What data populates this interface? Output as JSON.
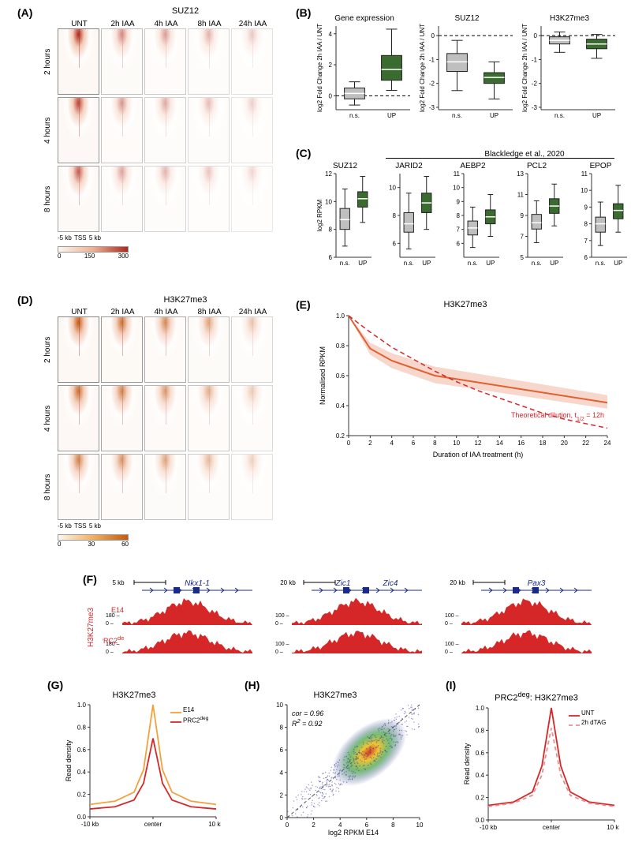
{
  "colors": {
    "green": "#3a6b2f",
    "gray": "#bfbfbf",
    "red": "#d62728",
    "orange": "#f2a13b",
    "darkred": "#b1261b",
    "blue": "#2a3a9a",
    "text": "#000000",
    "bg": "#ffffff"
  },
  "panelA": {
    "label": "(A)",
    "title": "SUZ12",
    "columns": [
      "UNT",
      "2h IAA",
      "4h IAA",
      "8h IAA",
      "24h IAA"
    ],
    "rows": [
      "2 hours",
      "4 hours",
      "8 hours"
    ],
    "xaxis": {
      "left": "-5 kb",
      "center": "TSS",
      "right": "5 kb"
    },
    "colorbar": {
      "min": 0,
      "mid": 150,
      "max": 300,
      "gradient": [
        "#fdf6ef",
        "#f0b090",
        "#b1261b"
      ]
    },
    "intensity_by_col": [
      1.0,
      0.55,
      0.45,
      0.35,
      0.25
    ]
  },
  "panelB": {
    "label": "(B)",
    "plots": [
      {
        "title": "Gene expression",
        "ylabel": "log2 Fold Change 2h IAA / UNT",
        "ylim": [
          -0.9,
          4.5
        ],
        "zero": 0,
        "categories": [
          "n.s.",
          "UP"
        ],
        "boxes": [
          {
            "color": "#bfbfbf",
            "q1": -0.2,
            "median": 0.15,
            "q3": 0.5,
            "lw": -0.6,
            "uw": 0.9
          },
          {
            "color": "#3a6b2f",
            "q1": 1.0,
            "median": 1.7,
            "q3": 2.6,
            "lw": 0.35,
            "uw": 4.3
          }
        ]
      },
      {
        "title": "SUZ12",
        "ylabel": "log2 Fold Change 2h IAA / UNT",
        "ylim": [
          -3.1,
          0.4
        ],
        "zero": 0,
        "categories": [
          "n.s.",
          "UP"
        ],
        "boxes": [
          {
            "color": "#bfbfbf",
            "q1": -1.5,
            "median": -1.1,
            "q3": -0.75,
            "lw": -2.3,
            "uw": -0.2
          },
          {
            "color": "#3a6b2f",
            "q1": -2.0,
            "median": -1.75,
            "q3": -1.55,
            "lw": -2.65,
            "uw": -1.1
          }
        ]
      },
      {
        "title": "H3K27me3",
        "ylabel": "log2 Fold Change 2h IAA / UNT",
        "ylim": [
          -3.1,
          0.4
        ],
        "zero": 0,
        "categories": [
          "n.s.",
          "UP"
        ],
        "boxes": [
          {
            "color": "#bfbfbf",
            "q1": -0.35,
            "median": -0.2,
            "q3": -0.05,
            "lw": -0.7,
            "uw": 0.15
          },
          {
            "color": "#3a6b2f",
            "q1": -0.55,
            "median": -0.35,
            "q3": -0.15,
            "lw": -0.95,
            "uw": 0.05
          }
        ]
      }
    ]
  },
  "panelC": {
    "label": "(C)",
    "ref": "Blackledge et al., 2020",
    "ylabel": "log2 RPKM",
    "plots": [
      {
        "title": "SUZ12",
        "ylim": [
          6,
          12
        ],
        "ticks": [
          6,
          8,
          10,
          12
        ],
        "categories": [
          "n.s.",
          "UP"
        ],
        "boxes": [
          {
            "color": "#bfbfbf",
            "q1": 8.0,
            "median": 8.7,
            "q3": 9.5,
            "lw": 6.8,
            "uw": 10.9
          },
          {
            "color": "#3a6b2f",
            "q1": 9.6,
            "median": 10.2,
            "q3": 10.7,
            "lw": 8.5,
            "uw": 11.8
          }
        ]
      },
      {
        "title": "JARID2",
        "ylim": [
          5,
          11
        ],
        "ticks": [
          6,
          8,
          10
        ],
        "categories": [
          "n.s.",
          "UP"
        ],
        "boxes": [
          {
            "color": "#bfbfbf",
            "q1": 6.8,
            "median": 7.4,
            "q3": 8.2,
            "lw": 5.6,
            "uw": 9.6
          },
          {
            "color": "#3a6b2f",
            "q1": 8.2,
            "median": 8.9,
            "q3": 9.6,
            "lw": 7.0,
            "uw": 10.8
          }
        ]
      },
      {
        "title": "AEBP2",
        "ylim": [
          5,
          11
        ],
        "ticks": [
          6,
          7,
          8,
          9,
          10,
          11
        ],
        "categories": [
          "n.s.",
          "UP"
        ],
        "boxes": [
          {
            "color": "#bfbfbf",
            "q1": 6.6,
            "median": 7.1,
            "q3": 7.6,
            "lw": 5.7,
            "uw": 8.6
          },
          {
            "color": "#3a6b2f",
            "q1": 7.4,
            "median": 7.9,
            "q3": 8.4,
            "lw": 6.5,
            "uw": 9.5
          }
        ]
      },
      {
        "title": "PCL2",
        "ylim": [
          5,
          13
        ],
        "ticks": [
          5,
          7,
          9,
          11,
          13
        ],
        "categories": [
          "n.s.",
          "UP"
        ],
        "boxes": [
          {
            "color": "#bfbfbf",
            "q1": 7.7,
            "median": 8.3,
            "q3": 9.1,
            "lw": 6.4,
            "uw": 10.4
          },
          {
            "color": "#3a6b2f",
            "q1": 9.2,
            "median": 9.9,
            "q3": 10.6,
            "lw": 8.0,
            "uw": 12.0
          }
        ]
      },
      {
        "title": "EPOP",
        "ylim": [
          6,
          11
        ],
        "ticks": [
          6,
          7,
          8,
          9,
          10,
          11
        ],
        "categories": [
          "n.s.",
          "UP"
        ],
        "boxes": [
          {
            "color": "#bfbfbf",
            "q1": 7.5,
            "median": 8.0,
            "q3": 8.4,
            "lw": 6.7,
            "uw": 9.3
          },
          {
            "color": "#3a6b2f",
            "q1": 8.3,
            "median": 8.8,
            "q3": 9.2,
            "lw": 7.5,
            "uw": 10.3
          }
        ]
      }
    ]
  },
  "panelD": {
    "label": "(D)",
    "title": "H3K27me3",
    "columns": [
      "UNT",
      "2h IAA",
      "4h IAA",
      "8h IAA",
      "24h IAA"
    ],
    "rows": [
      "2 hours",
      "4 hours",
      "8 hours"
    ],
    "xaxis": {
      "left": "-5 kb",
      "center": "TSS",
      "right": "5 kb"
    },
    "colorbar": {
      "min": 0,
      "mid": 30,
      "max": 60,
      "gradient": [
        "#fdf6ef",
        "#f0b060",
        "#c45a10"
      ]
    },
    "intensity_by_col": [
      1.0,
      0.85,
      0.7,
      0.55,
      0.35
    ]
  },
  "panelE": {
    "label": "(E)",
    "title": "H3K27me3",
    "ylabel": "Normalised RPKM",
    "xlabel": "Duration of IAA treatment (h)",
    "xlim": [
      0,
      24
    ],
    "ylim": [
      0.2,
      1.0
    ],
    "xticks": [
      0,
      2,
      4,
      6,
      8,
      10,
      12,
      14,
      16,
      18,
      20,
      22,
      24
    ],
    "yticks": [
      0.2,
      0.4,
      0.6,
      0.8,
      1.0
    ],
    "annotation": "Theoretical dilution, t₁₂ = 12h",
    "annotation_html": "Theoretical dilution, t<sub>1/2</sub> = 12h",
    "series_measured": {
      "color": "#e06030",
      "points": [
        [
          0,
          1.0
        ],
        [
          2,
          0.78
        ],
        [
          4,
          0.7
        ],
        [
          8,
          0.6
        ],
        [
          24,
          0.42
        ]
      ],
      "ribbon_lo": [
        [
          0,
          1.0
        ],
        [
          2,
          0.74
        ],
        [
          4,
          0.65
        ],
        [
          8,
          0.55
        ],
        [
          24,
          0.38
        ]
      ],
      "ribbon_hi": [
        [
          0,
          1.0
        ],
        [
          2,
          0.82
        ],
        [
          4,
          0.75
        ],
        [
          8,
          0.66
        ],
        [
          24,
          0.47
        ]
      ]
    },
    "series_theoretical": {
      "color": "#d62728",
      "dash": "6,4",
      "points": [
        [
          0,
          1.0
        ],
        [
          2,
          0.89
        ],
        [
          4,
          0.79
        ],
        [
          6,
          0.71
        ],
        [
          8,
          0.63
        ],
        [
          10,
          0.56
        ],
        [
          12,
          0.5
        ],
        [
          14,
          0.45
        ],
        [
          16,
          0.4
        ],
        [
          18,
          0.35
        ],
        [
          20,
          0.31
        ],
        [
          22,
          0.28
        ],
        [
          24,
          0.25
        ]
      ]
    }
  },
  "panelF": {
    "label": "(F)",
    "row_group": "H3K27me3",
    "rows": [
      "E14",
      "PRC2ᵈᵉᵍ"
    ],
    "rows_html": [
      "E14",
      "PRC2<sup>deg</sup>"
    ],
    "tracks": [
      {
        "gene": "Nkx1-1",
        "scale": "5 kb",
        "ymax": 180
      },
      {
        "gene_pair": [
          "Zic1",
          "Zic4"
        ],
        "scale": "20 kb",
        "ymax": 100
      },
      {
        "gene": "Pax3",
        "scale": "20 kb",
        "ymax": 100
      }
    ]
  },
  "panelG": {
    "label": "(G)",
    "title": "H3K27me3",
    "ylabel": "Read density",
    "xlabel_left": "-10 kb",
    "xlabel_center": "center",
    "xlabel_right": "10 kb",
    "ylim": [
      0,
      1.0
    ],
    "yticks": [
      0,
      0.2,
      0.4,
      0.6,
      0.8,
      1.0
    ],
    "series": [
      {
        "name": "E14",
        "color": "#f2a13b",
        "points": [
          [
            -10,
            0.11
          ],
          [
            -6,
            0.14
          ],
          [
            -3,
            0.22
          ],
          [
            -1.5,
            0.42
          ],
          [
            0,
            1.0
          ],
          [
            1.5,
            0.42
          ],
          [
            3,
            0.22
          ],
          [
            6,
            0.14
          ],
          [
            10,
            0.11
          ]
        ]
      },
      {
        "name": "PRC2deg",
        "name_html": "PRC2<sup>deg</sup>",
        "color": "#d62728",
        "points": [
          [
            -10,
            0.07
          ],
          [
            -6,
            0.09
          ],
          [
            -3,
            0.15
          ],
          [
            -1.5,
            0.3
          ],
          [
            0,
            0.7
          ],
          [
            1.5,
            0.3
          ],
          [
            3,
            0.15
          ],
          [
            6,
            0.09
          ],
          [
            10,
            0.07
          ]
        ]
      }
    ]
  },
  "panelH": {
    "label": "(H)",
    "title": "H3K27me3",
    "xlabel": "log2 RPKM E14",
    "ylabel_html": "log2 RPKM PRC2<sup>deg</sup>",
    "xlim": [
      0,
      10
    ],
    "ylim": [
      0,
      10
    ],
    "ticks": [
      0,
      2,
      4,
      6,
      8,
      10
    ],
    "stats": {
      "cor": 0.96,
      "R2": 0.92
    },
    "stats_labels": {
      "cor": "cor = 0.96",
      "R2_html": "R<sup>2</sup> = 0.92"
    },
    "colors": {
      "low": "#2a2a9a",
      "mid": "#3aa03a",
      "high": "#f0c020",
      "peak": "#d03018"
    }
  },
  "panelI": {
    "label": "(I)",
    "title_html": "PRC2<sup>deg</sup>: H3K27me3",
    "ylabel": "Read density",
    "xlabel_left": "-10 kb",
    "xlabel_center": "center",
    "xlabel_right": "10 kb",
    "ylim": [
      0,
      1.0
    ],
    "yticks": [
      0,
      0.2,
      0.4,
      0.6,
      0.8,
      1.0
    ],
    "series": [
      {
        "name": "UNT",
        "color": "#d62728",
        "dash": "none",
        "points": [
          [
            -10,
            0.13
          ],
          [
            -6,
            0.16
          ],
          [
            -3,
            0.25
          ],
          [
            -1.5,
            0.48
          ],
          [
            0,
            1.0
          ],
          [
            1.5,
            0.48
          ],
          [
            3,
            0.25
          ],
          [
            6,
            0.16
          ],
          [
            10,
            0.13
          ]
        ]
      },
      {
        "name": "2h dTAG",
        "color": "#e89090",
        "dash": "5,4",
        "points": [
          [
            -10,
            0.12
          ],
          [
            -6,
            0.15
          ],
          [
            -3,
            0.22
          ],
          [
            -1.5,
            0.4
          ],
          [
            0,
            0.82
          ],
          [
            1.5,
            0.4
          ],
          [
            3,
            0.22
          ],
          [
            6,
            0.15
          ],
          [
            10,
            0.12
          ]
        ]
      }
    ]
  }
}
